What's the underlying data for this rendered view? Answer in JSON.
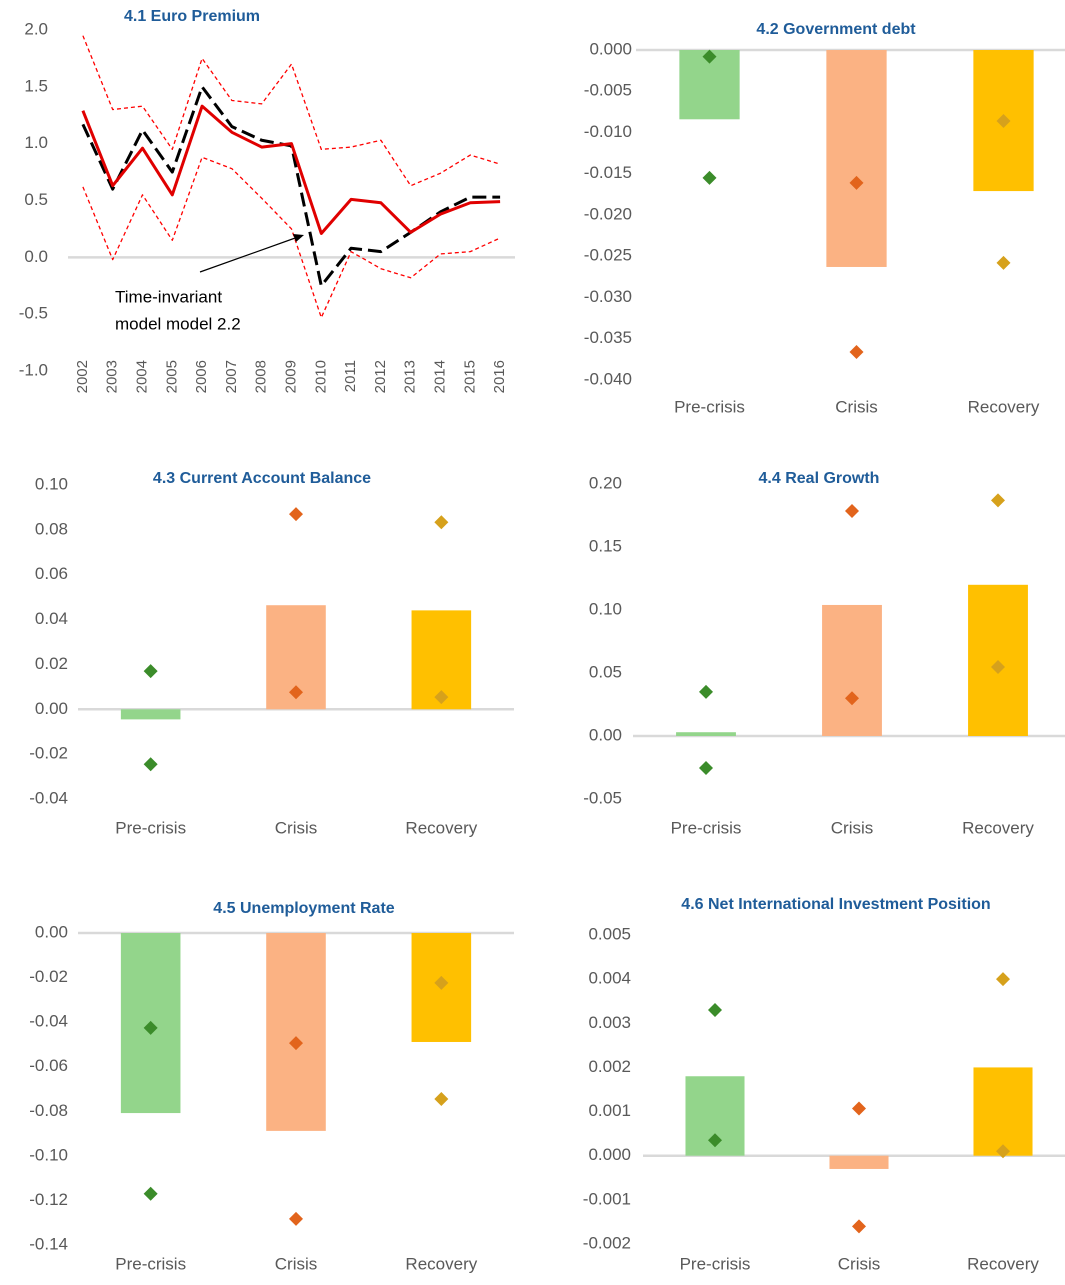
{
  "chart_data": [
    {
      "type": "line",
      "title": "4.1 Euro Premium",
      "categories": [
        "2002",
        "2003",
        "2004",
        "2005",
        "2006",
        "2007",
        "2008",
        "2009",
        "2010",
        "2011",
        "2012",
        "2013",
        "2014",
        "2015",
        "2016"
      ],
      "ylim": [
        -1,
        2
      ],
      "yticks": [
        {
          "value": -1,
          "label": "-1.0"
        },
        -0.5,
        {
          "value": 0,
          "label": "0.0"
        },
        0.5,
        {
          "value": 1,
          "label": "1.0"
        },
        1.5,
        {
          "value": 2,
          "label": "2.0"
        }
      ],
      "series": [
        {
          "color": "#ff0000",
          "line_style": "short-dash",
          "values": [
            1.95,
            1.3,
            1.33,
            0.95,
            1.75,
            1.38,
            1.35,
            1.7,
            0.95,
            0.97,
            1.03,
            0.63,
            0.74,
            0.9,
            0.82
          ]
        },
        {
          "color": "#ff0000",
          "line_style": "short-dash",
          "values": [
            0.62,
            -0.02,
            0.55,
            0.15,
            0.88,
            0.78,
            0.52,
            0.25,
            -0.53,
            0.05,
            -0.1,
            -0.18,
            0.03,
            0.05,
            0.17
          ]
        },
        {
          "color": "#000000",
          "line_style": "long-dash",
          "values": [
            1.17,
            0.6,
            1.12,
            0.75,
            1.5,
            1.15,
            1.03,
            0.98,
            -0.25,
            0.08,
            0.05,
            0.22,
            0.4,
            0.53,
            0.53
          ]
        },
        {
          "color": "#e00000",
          "line_style": "solid",
          "values": [
            1.29,
            0.63,
            0.96,
            0.55,
            1.33,
            1.1,
            0.97,
            1.0,
            0.21,
            0.51,
            0.48,
            0.22,
            0.38,
            0.48,
            0.49
          ]
        }
      ],
      "annotation": [
        "Time-invariant",
        "model model 2.2"
      ]
    },
    {
      "type": "bar",
      "title": "4.2 Government debt",
      "categories": [
        "Pre-crisis",
        "Crisis",
        "Recovery"
      ],
      "values": [
        -0.0084,
        -0.0263,
        -0.0171
      ],
      "colors": [
        "#93d58b",
        "#fbb283",
        "#ffc000"
      ],
      "markers": [
        {
          "values": [
            -0.0008,
            -0.0161,
            -0.0086
          ]
        },
        {
          "values": [
            -0.0155,
            -0.0366,
            -0.0258
          ]
        }
      ],
      "marker_colors": [
        "#3b8c2a",
        "#e2641c",
        "#d6a11c"
      ],
      "ylim": [
        -0.04,
        0
      ],
      "yticks": [
        {
          "value": -0.04,
          "label": "-0.040"
        },
        -0.035,
        {
          "value": -0.03,
          "label": "-0.030"
        },
        -0.025,
        {
          "value": -0.02,
          "label": "-0.020"
        },
        -0.015,
        {
          "value": -0.01,
          "label": "-0.010"
        },
        -0.005,
        {
          "value": 0,
          "label": "0.000"
        }
      ]
    },
    {
      "type": "bar",
      "title": "4.3 Current Account  Balance",
      "categories": [
        "Pre-crisis",
        "Crisis",
        "Recovery"
      ],
      "values": [
        -0.0045,
        0.0464,
        0.0441
      ],
      "colors": [
        "#93d58b",
        "#fbb283",
        "#ffc000"
      ],
      "markers": [
        {
          "values": [
            0.017,
            0.087,
            0.0834
          ]
        },
        {
          "values": [
            -0.0245,
            0.0076,
            0.0054
          ]
        }
      ],
      "marker_colors": [
        "#3b8c2a",
        "#e2641c",
        "#d6a11c"
      ],
      "ylim": [
        -0.04,
        0.1
      ],
      "yticks": [
        -0.04,
        -0.02,
        {
          "value": 0,
          "label": "0.00"
        },
        0.02,
        0.04,
        0.06,
        0.08,
        {
          "value": 0.1,
          "label": "0.10"
        }
      ]
    },
    {
      "type": "bar",
      "title": "4.4 Real Growth",
      "categories": [
        "Pre-crisis",
        "Crisis",
        "Recovery"
      ],
      "values": [
        0.003,
        0.104,
        0.12
      ],
      "colors": [
        "#93d58b",
        "#fbb283",
        "#ffc000"
      ],
      "markers": [
        {
          "values": [
            0.035,
            0.1786,
            0.187
          ]
        },
        {
          "values": [
            -0.0254,
            0.03,
            0.0548
          ]
        }
      ],
      "marker_colors": [
        "#3b8c2a",
        "#e2641c",
        "#d6a11c"
      ],
      "ylim": [
        -0.05,
        0.2
      ],
      "yticks": [
        -0.05,
        {
          "value": 0,
          "label": "0.00"
        },
        0.05,
        {
          "value": 0.1,
          "label": "0.10"
        },
        0.15,
        {
          "value": 0.2,
          "label": "0.20"
        }
      ]
    },
    {
      "type": "bar",
      "title": "4.5 Unemployment Rate",
      "categories": [
        "Pre-crisis",
        "Crisis",
        "Recovery"
      ],
      "values": [
        -0.0808,
        -0.0888,
        -0.0489
      ],
      "colors": [
        "#93d58b",
        "#fbb283",
        "#ffc000"
      ],
      "markers": [
        {
          "values": [
            -0.0426,
            -0.0494,
            -0.0224
          ]
        },
        {
          "values": [
            -0.117,
            -0.1283,
            -0.0745
          ]
        }
      ],
      "marker_colors": [
        "#3b8c2a",
        "#e2641c",
        "#d6a11c"
      ],
      "ylim": [
        -0.14,
        0
      ],
      "yticks": [
        -0.14,
        -0.12,
        {
          "value": -0.1,
          "label": "-0.10"
        },
        -0.08,
        -0.06,
        -0.04,
        -0.02,
        {
          "value": 0,
          "label": "0.00"
        }
      ]
    },
    {
      "type": "bar",
      "title": "4.6 Net International  Investment Position",
      "categories": [
        "Pre-crisis",
        "Crisis",
        "Recovery"
      ],
      "values": [
        0.0018,
        -0.0003,
        0.002
      ],
      "colors": [
        "#93d58b",
        "#fbb283",
        "#ffc000"
      ],
      "markers": [
        {
          "values": [
            0.0033,
            0.00107,
            0.004
          ]
        },
        {
          "values": [
            0.00035,
            -0.0016,
            0.0001
          ]
        }
      ],
      "marker_colors": [
        "#3b8c2a",
        "#e2641c",
        "#d6a11c"
      ],
      "ylim": [
        -0.002,
        0.005
      ],
      "yticks": [
        -0.002,
        -0.001,
        {
          "value": 0,
          "label": "0.000"
        },
        0.001,
        0.002,
        0.003,
        0.004,
        0.005
      ]
    }
  ]
}
